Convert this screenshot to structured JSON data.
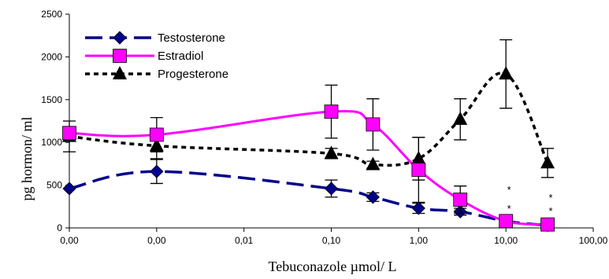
{
  "chart_data": {
    "type": "line",
    "xlabel": "Tebuconazole µmol/ L",
    "ylabel": "pg hormon/ ml",
    "x_tick_labels": [
      "0,00",
      "0,00",
      "0,01",
      "0,10",
      "1,00",
      "10,00",
      "100,00"
    ],
    "x_tick_values": [
      0.0001,
      0.001,
      0.01,
      0.1,
      1,
      10,
      100
    ],
    "x_scale": "log",
    "xlim": [
      0.0001,
      100
    ],
    "ylim": [
      0,
      2500
    ],
    "y_ticks": [
      0,
      500,
      1000,
      1500,
      2000,
      2500
    ],
    "grid": false,
    "legend_position": "top-left",
    "series": [
      {
        "name": "Testosterone",
        "color": "#00008B",
        "line_style": "long-dash",
        "marker": "diamond",
        "x": [
          0.0001,
          0.001,
          0.1,
          0.3,
          1,
          3,
          10,
          30
        ],
        "y": [
          460,
          660,
          460,
          360,
          230,
          190,
          80,
          30
        ],
        "error": [
          0,
          140,
          100,
          50,
          60,
          40,
          20,
          10
        ]
      },
      {
        "name": "Estradiol",
        "color": "#FF00FF",
        "line_style": "solid",
        "marker": "square",
        "x": [
          0.0001,
          0.001,
          0.1,
          0.3,
          1,
          3,
          10,
          30
        ],
        "y": [
          1110,
          1090,
          1360,
          1210,
          680,
          330,
          80,
          40
        ],
        "error": [
          60,
          200,
          310,
          300,
          380,
          160,
          30,
          10
        ]
      },
      {
        "name": "Progesterone",
        "color": "#000000",
        "line_style": "dotted",
        "marker": "triangle",
        "x": [
          0.0001,
          0.001,
          0.1,
          0.3,
          1,
          3,
          10,
          30
        ],
        "y": [
          1070,
          960,
          870,
          740,
          810,
          1270,
          1800,
          760
        ],
        "error": [
          180,
          150,
          60,
          40,
          250,
          240,
          400,
          170
        ]
      }
    ],
    "annotations": [
      {
        "text": "*",
        "x": 10,
        "y": 450
      },
      {
        "text": "*",
        "x": 10,
        "y": 230
      },
      {
        "text": "*",
        "x": 30,
        "y": 360
      },
      {
        "text": "*",
        "x": 30,
        "y": 200
      }
    ]
  }
}
